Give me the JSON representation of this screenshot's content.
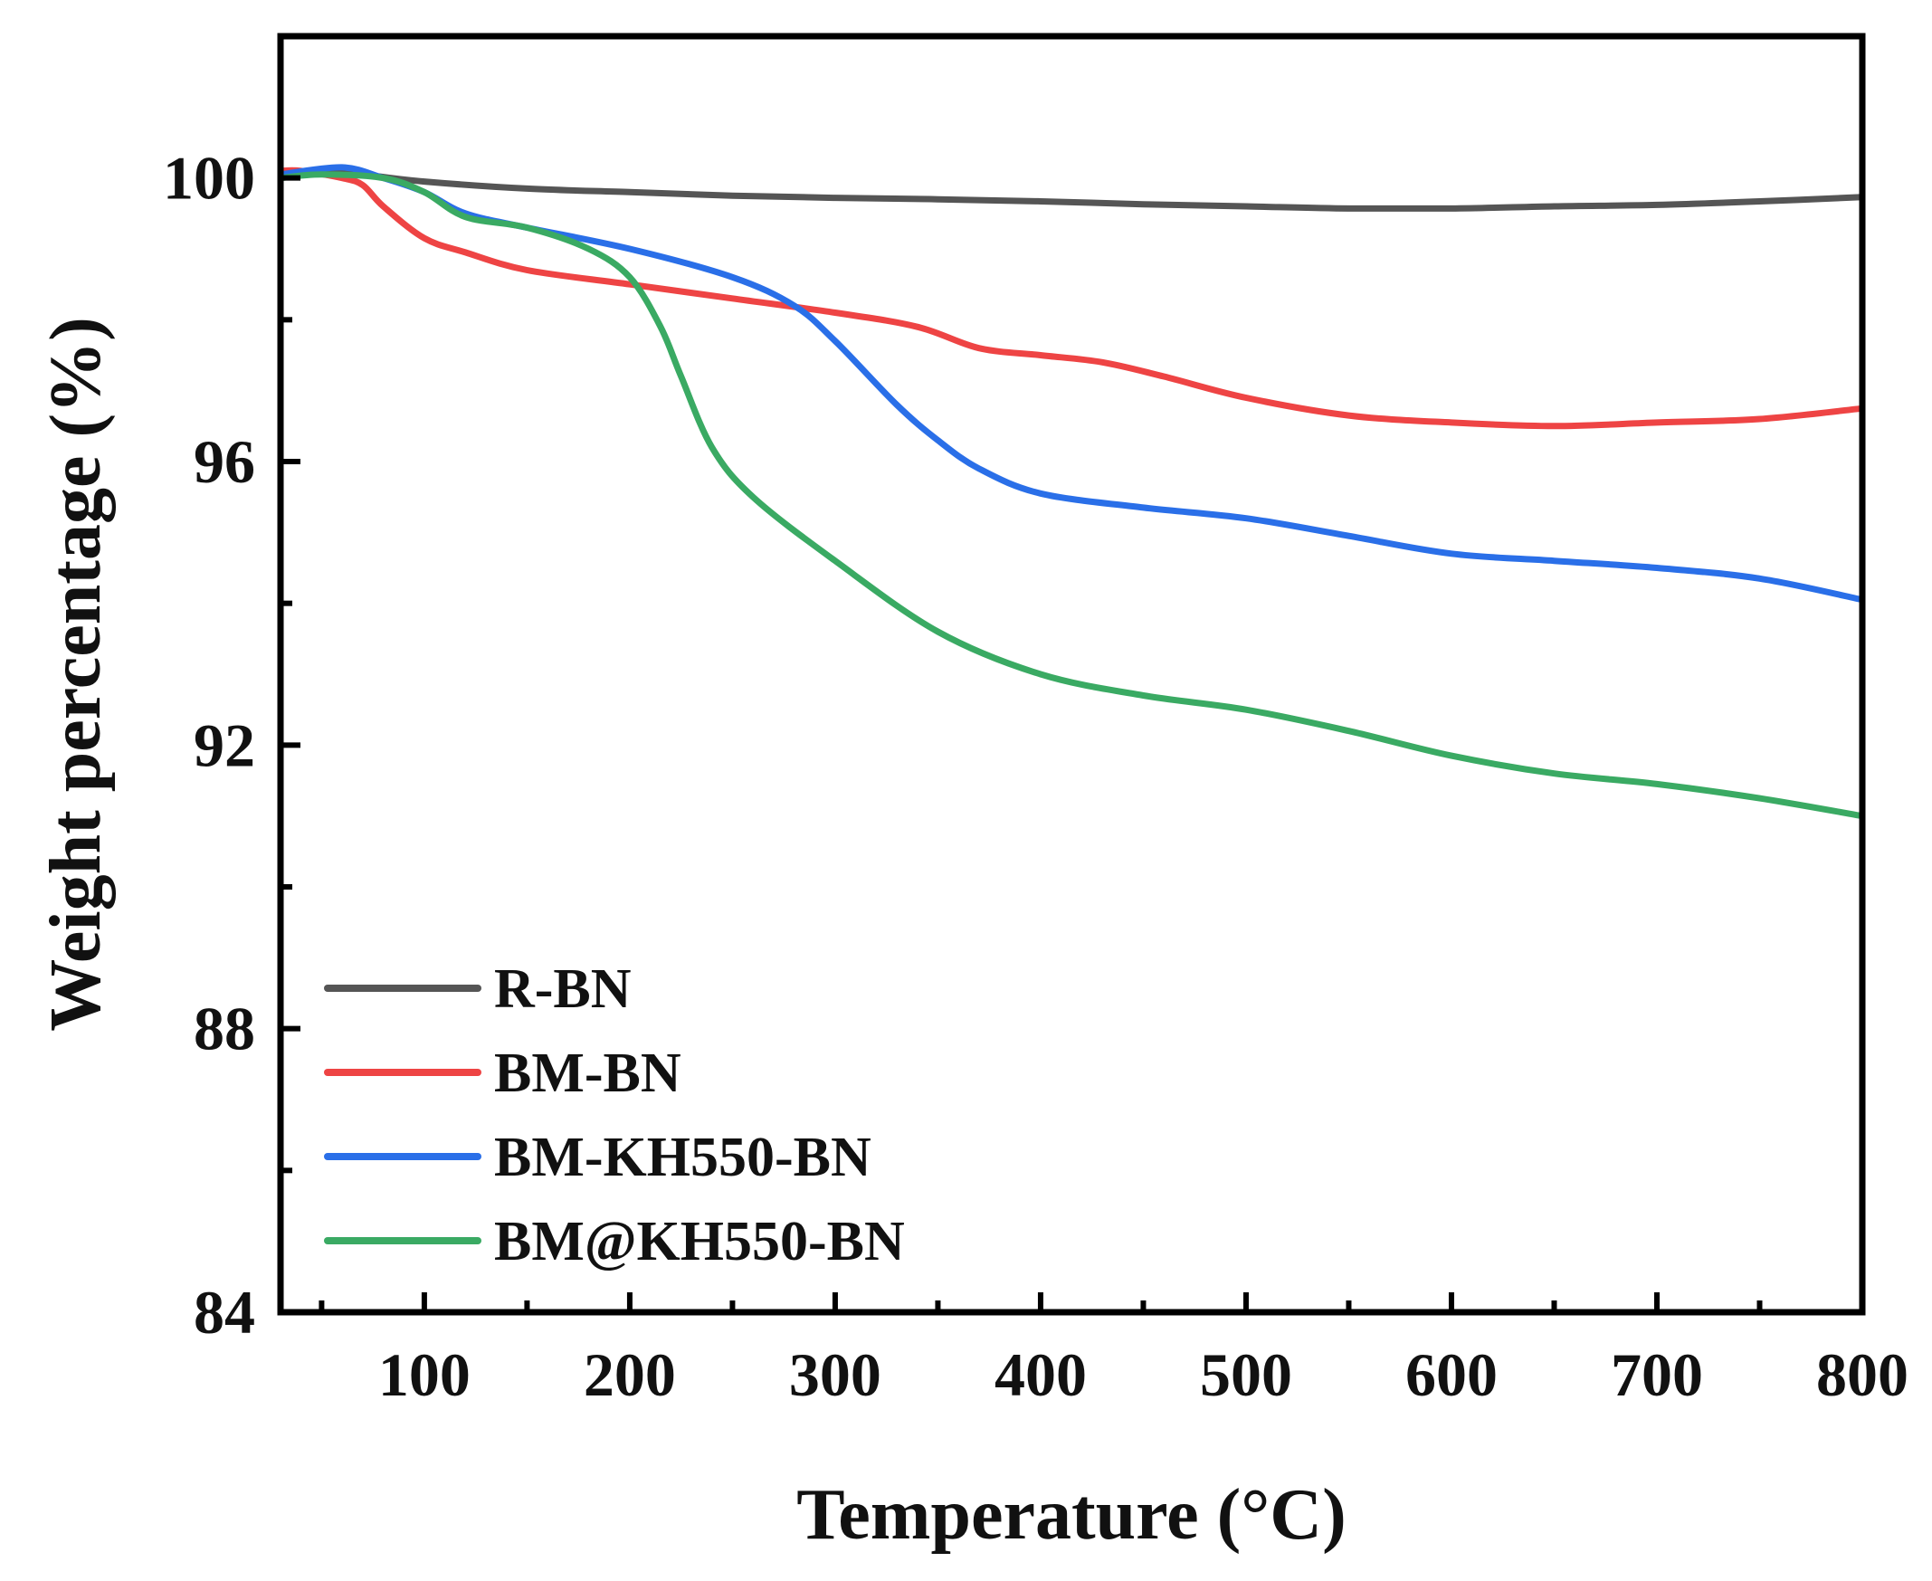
{
  "chart_data": {
    "type": "line",
    "title": "",
    "xlabel": "Temperature (°C)",
    "ylabel": "Weight percentage (%)",
    "xlim": [
      30,
      800
    ],
    "ylim": [
      84,
      102
    ],
    "xticks": [
      100,
      200,
      300,
      400,
      500,
      600,
      700,
      800
    ],
    "yticks": [
      84,
      88,
      92,
      96,
      100
    ],
    "legend_position": "bottom-left",
    "series": [
      {
        "name": "R-BN",
        "color": "#555555",
        "x": [
          30,
          50,
          70,
          100,
          150,
          200,
          250,
          300,
          350,
          400,
          450,
          500,
          550,
          600,
          650,
          700,
          750,
          800
        ],
        "y": [
          100.0,
          100.1,
          100.05,
          99.95,
          99.85,
          99.8,
          99.75,
          99.72,
          99.7,
          99.67,
          99.63,
          99.6,
          99.57,
          99.57,
          99.6,
          99.62,
          99.67,
          99.73
        ]
      },
      {
        "name": "BM-BN",
        "color": "#ee4444",
        "x": [
          30,
          40,
          60,
          70,
          80,
          100,
          120,
          150,
          200,
          250,
          300,
          340,
          370,
          400,
          430,
          460,
          500,
          550,
          600,
          650,
          700,
          750,
          800
        ],
        "y": [
          100.1,
          100.1,
          100.0,
          99.9,
          99.6,
          99.15,
          98.95,
          98.7,
          98.5,
          98.3,
          98.1,
          97.9,
          97.6,
          97.5,
          97.4,
          97.2,
          96.9,
          96.65,
          96.55,
          96.5,
          96.55,
          96.6,
          96.75
        ]
      },
      {
        "name": "BM-KH550-BN",
        "color": "#2a6fe8",
        "x": [
          30,
          60,
          80,
          100,
          120,
          150,
          200,
          250,
          280,
          300,
          330,
          350,
          370,
          400,
          450,
          500,
          550,
          600,
          650,
          700,
          750,
          800
        ],
        "y": [
          100.05,
          100.15,
          100.0,
          99.8,
          99.5,
          99.3,
          99.0,
          98.6,
          98.2,
          97.7,
          96.8,
          96.3,
          95.9,
          95.55,
          95.35,
          95.2,
          94.95,
          94.7,
          94.6,
          94.5,
          94.35,
          94.05
        ]
      },
      {
        "name": "BM@KH550-BN",
        "color": "#3aaa63",
        "x": [
          30,
          50,
          80,
          100,
          120,
          150,
          180,
          200,
          215,
          225,
          240,
          260,
          300,
          350,
          400,
          450,
          500,
          550,
          600,
          650,
          700,
          750,
          800
        ],
        "y": [
          100.0,
          100.05,
          100.0,
          99.8,
          99.45,
          99.3,
          99.0,
          98.6,
          97.9,
          97.2,
          96.2,
          95.5,
          94.6,
          93.6,
          93.0,
          92.7,
          92.5,
          92.2,
          91.85,
          91.6,
          91.45,
          91.25,
          91.0
        ]
      }
    ]
  }
}
